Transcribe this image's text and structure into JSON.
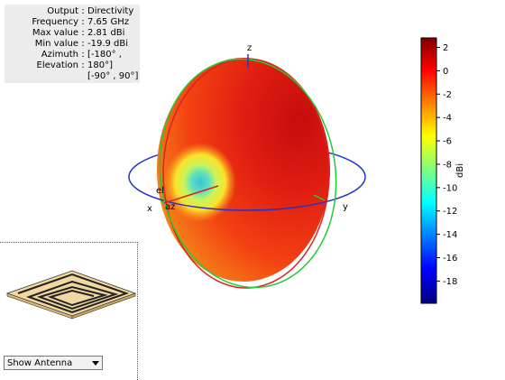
{
  "info": {
    "rows": [
      {
        "key": "Output",
        "value": "Directivity"
      },
      {
        "key": "Frequency",
        "value": "7.65 GHz"
      },
      {
        "key": "Max value",
        "value": "2.81 dBi"
      },
      {
        "key": "Min value",
        "value": "-19.9 dBi"
      },
      {
        "key": "Azimuth",
        "value": "[-180° ,"
      },
      {
        "key": "Elevation",
        "value": "180°]"
      },
      {
        "key": "",
        "value": "[-90° , 90°]"
      }
    ]
  },
  "colorbar": {
    "ticks": [
      "2",
      "0",
      "-2",
      "-4",
      "-6",
      "-8",
      "-10",
      "-12",
      "-14",
      "-16",
      "-18"
    ],
    "tick_values": [
      2,
      0,
      -2,
      -4,
      -6,
      -8,
      -10,
      -12,
      -14,
      -16,
      -18
    ],
    "unit": "dBi",
    "max": 2.81,
    "min": -19.9
  },
  "axes": {
    "x": "x",
    "y": "y",
    "z": "z",
    "az": "az",
    "el": "el"
  },
  "colors": {
    "x_ring": "#2233cc",
    "y_ring": "#22cc33",
    "z_ring": "#dd2222",
    "origin_red": "#cc2222"
  },
  "antenna_panel": {
    "dropdown_value": "Show Antenna"
  }
}
